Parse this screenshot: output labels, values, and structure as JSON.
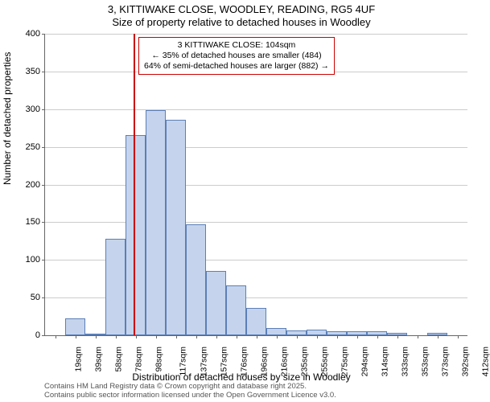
{
  "title_line1": "3, KITTIWAKE CLOSE, WOODLEY, READING, RG5 4UF",
  "title_line2": "Size of property relative to detached houses in Woodley",
  "y_axis_title": "Number of detached properties",
  "x_axis_title": "Distribution of detached houses by size in Woodley",
  "attribution_line1": "Contains HM Land Registry data © Crown copyright and database right 2025.",
  "attribution_line2": "Contains public sector information licensed under the Open Government Licence v3.0.",
  "chart": {
    "type": "histogram",
    "bar_fill": "#c5d4ec",
    "bar_border": "#5b7fb7",
    "grid_color": "#cccccc",
    "marker_color": "#cc0000",
    "background_color": "#ffffff",
    "axis_color": "#666666",
    "title_fontsize": 13,
    "axis_label_fontsize": 12,
    "tick_fontsize": 11,
    "ylim": [
      0,
      400
    ],
    "ytick_step": 50,
    "x_categories": [
      "19sqm",
      "39sqm",
      "58sqm",
      "78sqm",
      "98sqm",
      "117sqm",
      "137sqm",
      "157sqm",
      "176sqm",
      "196sqm",
      "216sqm",
      "235sqm",
      "255sqm",
      "275sqm",
      "294sqm",
      "314sqm",
      "333sqm",
      "353sqm",
      "373sqm",
      "392sqm",
      "412sqm"
    ],
    "values": [
      0,
      22,
      1,
      128,
      266,
      299,
      286,
      147,
      85,
      66,
      36,
      10,
      6,
      8,
      5,
      5,
      5,
      3,
      0,
      3,
      0
    ],
    "marker_position_index": 4.4,
    "info_box": {
      "line1": "3 KITTIWAKE CLOSE: 104sqm",
      "line2": "← 35% of detached houses are smaller (484)",
      "line3": "64% of semi-detached houses are larger (882) →",
      "border_color": "#cc0000",
      "fontsize": 10.5
    }
  }
}
